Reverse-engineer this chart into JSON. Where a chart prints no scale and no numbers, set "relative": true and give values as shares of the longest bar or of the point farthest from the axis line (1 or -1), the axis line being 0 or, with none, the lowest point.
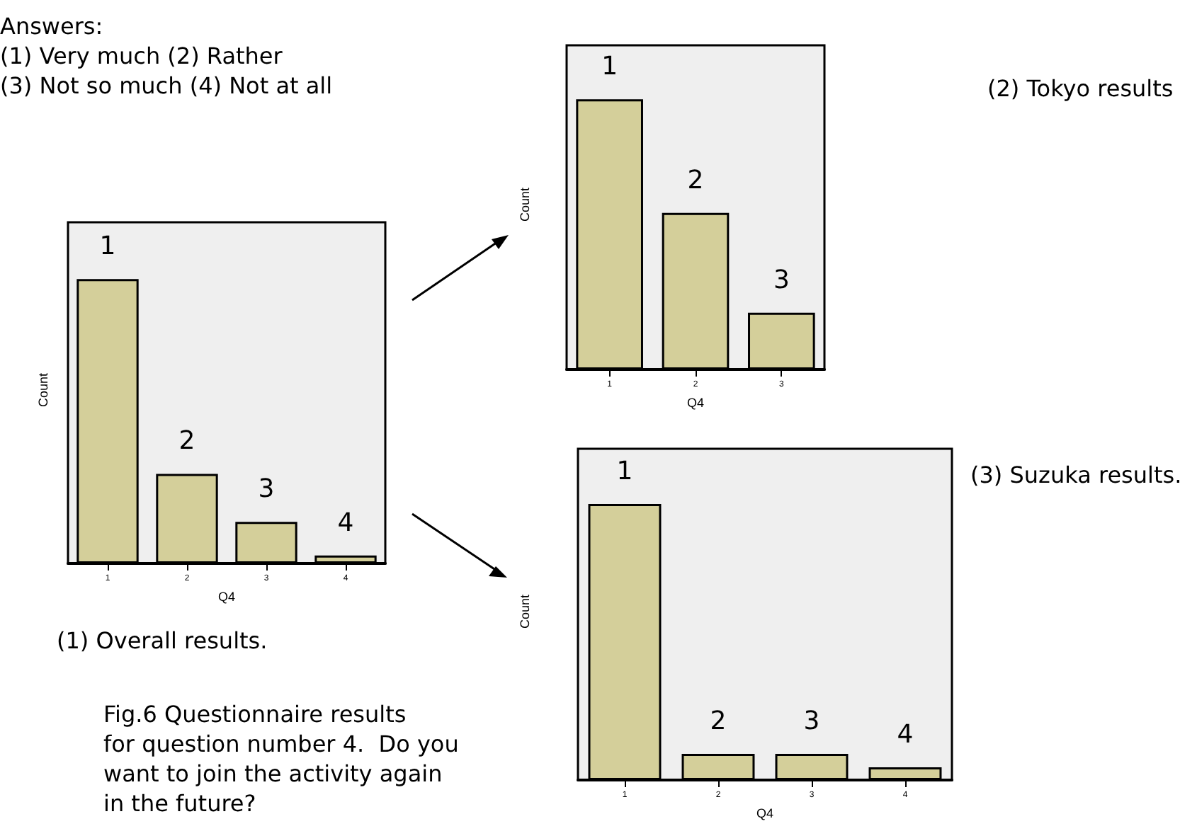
{
  "chart_data": [
    {
      "type": "bar",
      "categories": [
        "1",
        "2",
        "3",
        "4"
      ],
      "values": [
        1,
        0.315,
        0.146,
        0.028
      ],
      "color": "#d4cf9a",
      "relative": true,
      "xlabel": "Q4",
      "ylabel": "Count",
      "grid": false,
      "annotations": [
        "Answers:\n(1) Very much (2) Rather\n(3) Not so much (4) Not at all",
        "(1) Overall results.",
        "Fig.6 Questionnaire results\nfor question number 4.  Do you\nwant to join the activity again\nin the future?"
      ]
    },
    {
      "type": "bar",
      "categories": [
        "1",
        "2",
        "3"
      ],
      "values": [
        1,
        0.58,
        0.21
      ],
      "color": "#d4cf9a",
      "relative": true,
      "xlabel": "Q4",
      "ylabel": "Count",
      "grid": false,
      "annotations": [
        "(2) Tokyo results"
      ]
    },
    {
      "type": "bar",
      "categories": [
        "1",
        "2",
        "3",
        "4"
      ],
      "values": [
        1,
        0.095,
        0.095,
        0.046
      ],
      "color": "#d4cf9a",
      "relative": true,
      "xlabel": "Q4",
      "ylabel": "Count",
      "grid": false,
      "annotations": [
        "(3) Suzuka results."
      ]
    }
  ]
}
